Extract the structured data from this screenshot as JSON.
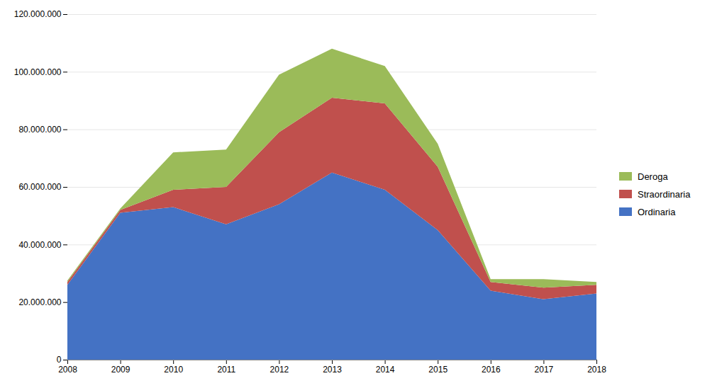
{
  "chart_data": {
    "type": "area",
    "stacked": true,
    "x": [
      2008,
      2009,
      2010,
      2011,
      2012,
      2013,
      2014,
      2015,
      2016,
      2017,
      2018
    ],
    "series": [
      {
        "name": "Ordinaria",
        "color": "#4472C4",
        "values": [
          26000000,
          51000000,
          53000000,
          47000000,
          54000000,
          65000000,
          59000000,
          45000000,
          24000000,
          21000000,
          23000000
        ]
      },
      {
        "name": "Straordinaria",
        "color": "#C0504D",
        "values": [
          1000000,
          1000000,
          6000000,
          13000000,
          25000000,
          26000000,
          30000000,
          22000000,
          3000000,
          4000000,
          3000000
        ]
      },
      {
        "name": "Deroga",
        "color": "#9BBB59",
        "values": [
          500000,
          500000,
          13000000,
          13000000,
          20000000,
          17000000,
          13000000,
          8000000,
          1000000,
          3000000,
          1000000
        ]
      }
    ],
    "xlim": [
      2008,
      2018
    ],
    "xticks": [
      2008,
      2009,
      2010,
      2011,
      2012,
      2013,
      2014,
      2015,
      2016,
      2017,
      2018
    ],
    "ylim": [
      0,
      120000000
    ],
    "yticks": [
      0,
      {
        "value": 20000000,
        "label": "20.000.000"
      },
      {
        "value": 40000000,
        "label": "40.000.000"
      },
      {
        "value": 60000000,
        "label": "60.000.000"
      },
      {
        "value": 80000000,
        "label": "80.000.000"
      },
      {
        "value": 100000000,
        "label": "100.000.000"
      },
      {
        "value": 120000000,
        "label": "120.000.000"
      }
    ],
    "grid": true,
    "legend": "right"
  }
}
